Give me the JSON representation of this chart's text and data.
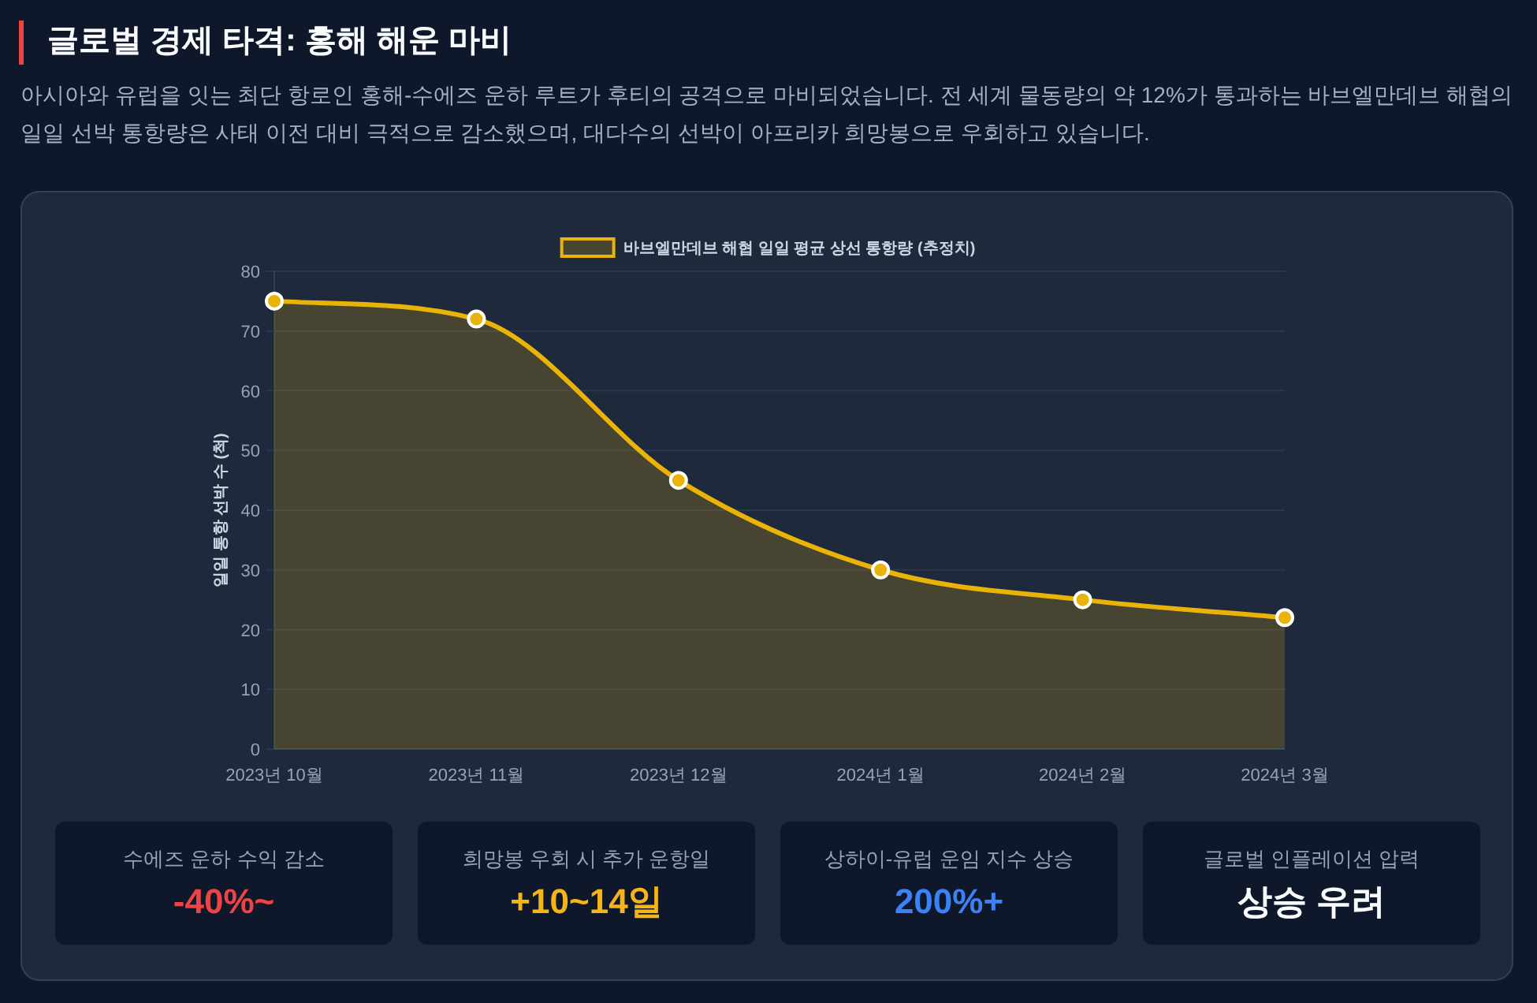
{
  "chart_data": [
    {
      "type": "area",
      "title": "글로벌 경제 타격: 홍해 해운 마비",
      "subtitle": "아시아와 유럽을 잇는 최단 항로인 홍해-수에즈 운하 루트가 후티의 공격으로 마비되었습니다. 전 세계 물동량의 약 12%가 통과하는 바브엘만데브 해협의 일일 선박 통항량은 사태 이전 대비 극적으로 감소했으며, 대다수의 선박이 아프리카 희망봉으로 우회하고 있습니다.",
      "ylabel": "일일 통항 선박 수 (척)",
      "categories": [
        "2023년 10월",
        "2023년 11월",
        "2023년 12월",
        "2024년 1월",
        "2024년 2월",
        "2024년 3월"
      ],
      "series": [
        {
          "name": "바브엘만데브 해협 일일 평균 상선 통항량 (추정치)",
          "color": "#eab308",
          "values": [
            75,
            72,
            45,
            30,
            25,
            22
          ]
        }
      ],
      "ylim": [
        0,
        80
      ],
      "yticks": [
        0,
        10,
        20,
        30,
        40,
        50,
        60,
        70,
        80
      ],
      "grid": "y",
      "legend": "top",
      "marker": "circle"
    },
    {
      "type": "other",
      "annotations": [
        "수에즈 운하 수익 감소",
        "-40%~",
        "희망봉 우회 시 추가 운항일",
        "+10~14일",
        "상하이-유럽 운임 지수 상승",
        "200%+",
        "글로벌 인플레이션 압력",
        "상승 우려"
      ],
      "colors": [
        "#ef4444",
        "#f5b417",
        "#3b82f6",
        "#f8fafc"
      ]
    }
  ]
}
